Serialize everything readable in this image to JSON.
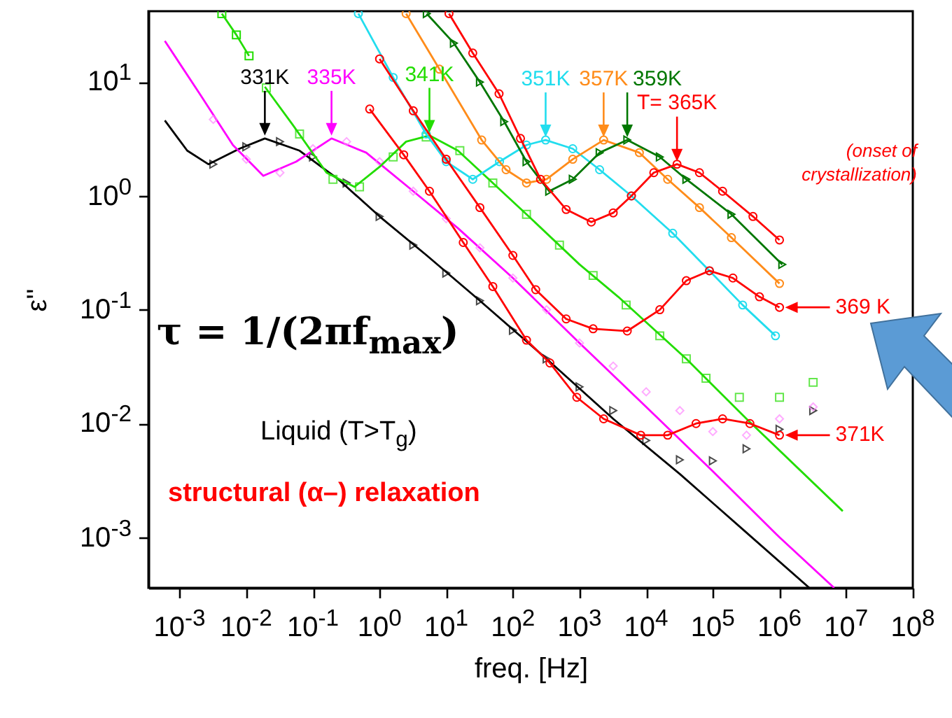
{
  "chart_data": {
    "type": "line",
    "xlabel": "freq. [Hz]",
    "ylabel": "ε''",
    "log": "xy",
    "xlim": [
      0.00034,
      100000000
    ],
    "ylim": [
      0.00036,
      42
    ],
    "xticks": [
      {
        "value": 0.001,
        "label": "10$^{-3}$"
      },
      {
        "value": 0.01,
        "label": "10$^{-2}$"
      },
      {
        "value": 0.1,
        "label": "10$^{-1}$"
      },
      {
        "value": 1,
        "label": "10$^{0}$"
      },
      {
        "value": 10,
        "label": "10$^{1}$"
      },
      {
        "value": 100,
        "label": "10$^{2}$"
      },
      {
        "value": 1000,
        "label": "10$^{3}$"
      },
      {
        "value": 10000,
        "label": "10$^{4}$"
      },
      {
        "value": 100000,
        "label": "10$^{5}$"
      },
      {
        "value": 1000000,
        "label": "10$^{6}$"
      },
      {
        "value": 10000000,
        "label": "10$^{7}$"
      },
      {
        "value": 100000000,
        "label": "10$^{8}$"
      }
    ],
    "yticks": [
      {
        "value": 0.001,
        "label": "10$^{-3}$"
      },
      {
        "value": 0.01,
        "label": "10$^{-2}$"
      },
      {
        "value": 0.1,
        "label": "10$^{-1}$"
      },
      {
        "value": 1,
        "label": "10$^{0}$"
      },
      {
        "value": 10,
        "label": "10$^{1}$"
      }
    ],
    "series": [
      {
        "type": "line",
        "marker": "none",
        "color": "#000000",
        "x": [
          0.0006,
          0.0013,
          0.0027,
          0.0079,
          0.019,
          0.063,
          0.24,
          1,
          5.1,
          32,
          320,
          3200,
          32000,
          320000,
          2800000
        ],
        "values": [
          4.6,
          2.5,
          1.9,
          2.6,
          3.2,
          2.5,
          1.4,
          0.66,
          0.3,
          0.12,
          0.037,
          0.011,
          0.0036,
          0.0011,
          0.00036
        ]
      },
      {
        "type": "scatter",
        "marker": "triangle",
        "color": "#000000",
        "x": [
          0.0032,
          0.01,
          0.032,
          0.1,
          0.32,
          1,
          3.2,
          10,
          32,
          100,
          320,
          1000,
          3200,
          10000,
          32000,
          100000,
          320000,
          1000000,
          3200000
        ],
        "values": [
          1.9,
          2.7,
          3.0,
          2.2,
          1.3,
          0.66,
          0.37,
          0.21,
          0.12,
          0.066,
          0.037,
          0.021,
          0.013,
          0.0071,
          0.0048,
          0.0047,
          0.006,
          0.0089,
          0.013
        ]
      },
      {
        "type": "line",
        "marker": "none",
        "color": "#ff00ff",
        "x": [
          0.0006,
          0.002,
          0.0063,
          0.018,
          0.056,
          0.19,
          0.63,
          3.2,
          15,
          100,
          1000,
          10000,
          100000,
          1000000,
          6600000
        ],
        "values": [
          23,
          7.9,
          2.8,
          1.5,
          2.0,
          3.2,
          2.4,
          1.1,
          0.52,
          0.19,
          0.051,
          0.014,
          0.0038,
          0.001,
          0.00036
        ]
      },
      {
        "type": "scatter",
        "marker": "diamond",
        "color": "#ff88ff",
        "x": [
          0.0032,
          0.01,
          0.032,
          0.1,
          0.32,
          1,
          3.2,
          10,
          32,
          100,
          320,
          1000,
          3200,
          10000,
          32000,
          100000,
          320000,
          1000000,
          3200000
        ],
        "values": [
          4.7,
          2.1,
          1.6,
          2.6,
          3.0,
          2.0,
          1.1,
          0.63,
          0.35,
          0.19,
          0.1,
          0.051,
          0.032,
          0.019,
          0.013,
          0.0085,
          0.0079,
          0.011,
          0.014
        ]
      },
      {
        "marker": "square",
        "color": "#22dd00",
        "x": [
          0.0043,
          0.0071,
          0.011
        ],
        "values": [
          40,
          26,
          17
        ]
      },
      {
        "type": "line",
        "marker": "none",
        "color": "#22dd00",
        "x": [
          0.019,
          0.05,
          0.16,
          0.42,
          1,
          2.5,
          5.6,
          15,
          50,
          160,
          1000,
          3800,
          40000,
          320000,
          8900000
        ],
        "values": [
          9.1,
          4.2,
          1.6,
          1.2,
          1.8,
          3.0,
          3.4,
          2.5,
          1.3,
          0.69,
          0.25,
          0.13,
          0.037,
          0.011,
          0.0017
        ]
      },
      {
        "type": "scatter",
        "marker": "square",
        "color": "#22dd00",
        "x": [
          0.02,
          0.063,
          0.2,
          0.5,
          1.6,
          5,
          16,
          50,
          160,
          500,
          1600,
          5000,
          16000,
          40000,
          79000,
          250000,
          1000000,
          3200000
        ],
        "values": [
          8.9,
          3.5,
          1.4,
          1.2,
          2.2,
          3.3,
          2.5,
          1.3,
          0.69,
          0.37,
          0.2,
          0.11,
          0.059,
          0.037,
          0.025,
          0.017,
          0.017,
          0.023
        ]
      },
      {
        "marker": "circle",
        "color": "#22ddee",
        "x": [
          0.48,
          1.6,
          5,
          10,
          25,
          63,
          160,
          310,
          790,
          2000,
          6000,
          25000,
          89000,
          280000,
          870000
        ],
        "values": [
          40,
          11,
          3.5,
          2.0,
          1.4,
          2.0,
          2.8,
          3.1,
          2.6,
          1.7,
          1.0,
          0.47,
          0.22,
          0.11,
          0.059
        ]
      },
      {
        "marker": "circle",
        "color": "#ff8c1a",
        "x": [
          2.5,
          7.9,
          34,
          79,
          160,
          320,
          790,
          2300,
          7900,
          21000,
          63000,
          190000,
          1000000
        ],
        "values": [
          40,
          13,
          3.1,
          1.7,
          1.3,
          1.4,
          2.1,
          3.1,
          2.4,
          1.4,
          0.79,
          0.43,
          0.17
        ]
      },
      {
        "marker": "triangle",
        "color": "#007700",
        "x": [
          5.1,
          13,
          32,
          74,
          160,
          350,
          790,
          2000,
          5200,
          16000,
          40000,
          190000,
          1100000
        ],
        "values": [
          40,
          22,
          10,
          4.5,
          2.0,
          1.1,
          1.4,
          2.4,
          3.1,
          2.2,
          1.4,
          0.69,
          0.25
        ]
      },
      {
        "marker": "circle",
        "color": "#ff0000",
        "x": [
          11,
          25,
          62,
          130,
          260,
          630,
          1500,
          3200,
          6000,
          13000,
          29000,
          63000,
          140000,
          400000,
          1000000
        ],
        "values": [
          40,
          18,
          7.9,
          3.2,
          1.4,
          0.76,
          0.59,
          0.71,
          1.0,
          1.6,
          1.9,
          1.6,
          1.1,
          0.66,
          0.41
        ]
      },
      {
        "marker": "circle",
        "color": "#ff0000",
        "x": [
          1,
          3.2,
          10,
          32,
          100,
          220,
          630,
          1600,
          5200,
          16000,
          40000,
          89000,
          200000,
          500000,
          1000000
        ],
        "values": [
          16,
          5.6,
          2.1,
          0.79,
          0.3,
          0.15,
          0.083,
          0.068,
          0.065,
          0.1,
          0.18,
          0.22,
          0.19,
          0.13,
          0.105
        ]
      },
      {
        "marker": "circle",
        "color": "#ff0000",
        "x": [
          0.71,
          2.3,
          5.6,
          18,
          50,
          160,
          360,
          910,
          2300,
          8300,
          21000,
          56000,
          140000,
          360000,
          1000000
        ],
        "values": [
          5.8,
          2.3,
          1.1,
          0.39,
          0.16,
          0.054,
          0.034,
          0.017,
          0.011,
          0.0079,
          0.0079,
          0.01,
          0.011,
          0.01,
          0.0079
        ]
      }
    ],
    "annotations": [
      "τ = 1/(2πf$_{max}$)",
      "Liquid (T>T$_{g}$)",
      "structural (α–) relaxation",
      "(onset of crystallization)",
      {
        "text": "331K",
        "x": 0.019,
        "y": 3.2
      },
      {
        "text": "335K",
        "x": 0.19,
        "y": 3.2
      },
      {
        "text": "341K",
        "x": 5.6,
        "y": 3.4
      },
      {
        "text": "351K",
        "x": 310,
        "y": 3.1
      },
      {
        "text": "357K",
        "x": 2300,
        "y": 3.1
      },
      {
        "text": "359K",
        "x": 5200,
        "y": 3.1
      },
      {
        "text": "T= 365K",
        "x": 29000,
        "y": 1.9
      },
      {
        "text": "369 K",
        "x": 1000000,
        "y": 0.105
      },
      {
        "text": "371K",
        "x": 1000000,
        "y": 0.0079
      }
    ]
  }
}
